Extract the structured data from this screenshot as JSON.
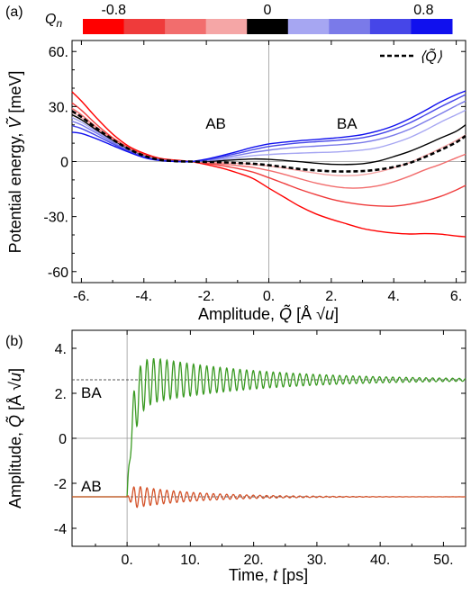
{
  "chart_data": [
    {
      "type": "line",
      "panel_label": "(a)",
      "xlabel": "Amplitude, Q̃ [Å √u]",
      "ylabel": "Potential energy, Ṽ [meV]",
      "xlim": [
        -6.3,
        6.3
      ],
      "ylim": [
        -66,
        66
      ],
      "xticks": [
        -6,
        -4,
        -2,
        0,
        2,
        4,
        6
      ],
      "xtick_labels": [
        "-6.",
        "-4.",
        "-2.",
        "0.",
        "2.",
        "4.",
        "6."
      ],
      "yticks": [
        -60,
        -30,
        0,
        30,
        60
      ],
      "ytick_labels": [
        "-60",
        "-30.",
        "0",
        "30.",
        "60."
      ],
      "region_labels": [
        {
          "text": "AB",
          "x": -1.7,
          "y": 18
        },
        {
          "text": "BA",
          "x": 2.5,
          "y": 18
        }
      ],
      "legend": {
        "label": "⟨Q̃⟩",
        "position": "top-right",
        "style": "dashed"
      },
      "colorbar": {
        "label": "Qn",
        "tick_labels": [
          "-0.8",
          "0",
          "0.8"
        ],
        "values": [
          -0.8,
          -0.6,
          -0.4,
          -0.2,
          0,
          0.2,
          0.4,
          0.6,
          0.8
        ],
        "colors": [
          "#ff0000",
          "#ef3b3b",
          "#f26d6d",
          "#f5a6a6",
          "#000000",
          "#a6a6f2",
          "#7a7ae9",
          "#4646e8",
          "#1010ee"
        ]
      },
      "x": [
        -6.3,
        -6,
        -5.5,
        -5,
        -4.5,
        -4,
        -3.5,
        -3,
        -2.5,
        -2,
        -1.5,
        -1,
        -0.5,
        0,
        0.5,
        1,
        1.5,
        2,
        2.5,
        3,
        3.5,
        4,
        4.5,
        5,
        5.5,
        6,
        6.3
      ],
      "series": [
        {
          "q": -0.8,
          "color": "#ff0000",
          "values": [
            38,
            33,
            23.5,
            15,
            8.5,
            4.5,
            1.8,
            0.8,
            0,
            -1.6,
            -3.6,
            -6.2,
            -9.3,
            -14.5,
            -19.5,
            -24.5,
            -28.5,
            -31.5,
            -34,
            -36.5,
            -38,
            -39,
            -39.5,
            -39.3,
            -39.6,
            -40.6,
            -41
          ]
        },
        {
          "q": -0.6,
          "color": "#ef3b3b",
          "values": [
            32,
            28,
            20,
            13,
            7.7,
            4,
            1.4,
            0.5,
            0,
            -1,
            -2.2,
            -3.8,
            -5.8,
            -8.8,
            -12,
            -15.2,
            -18,
            -20.5,
            -22.3,
            -23.5,
            -24.2,
            -24.3,
            -23.3,
            -21.5,
            -19,
            -15.5,
            -13
          ]
        },
        {
          "q": -0.4,
          "color": "#f26d6d",
          "values": [
            29,
            25.5,
            18.5,
            12.3,
            7.3,
            3.5,
            1.2,
            0.3,
            0,
            -0.6,
            -1.3,
            -2.2,
            -3.2,
            -4.9,
            -7,
            -9.4,
            -11.7,
            -13.4,
            -14.4,
            -14.3,
            -13.2,
            -11,
            -8,
            -4.5,
            -1.5,
            2,
            4
          ]
        },
        {
          "q": -0.2,
          "color": "#f5a6a6",
          "values": [
            27,
            24,
            17.8,
            12,
            7,
            3.3,
            1.1,
            0.2,
            0,
            -0.3,
            -0.6,
            -1,
            -1.6,
            -2.4,
            -3.6,
            -5,
            -6.3,
            -7.4,
            -7.7,
            -7.2,
            -5.7,
            -3.4,
            -0.6,
            3.2,
            7.2,
            11.5,
            14.5
          ]
        },
        {
          "q": 0,
          "color": "#000000",
          "values": [
            25.5,
            22.8,
            17,
            11.5,
            6.7,
            3,
            1,
            0.2,
            0,
            0.1,
            0.5,
            1,
            1.4,
            1.2,
            0.6,
            -0.1,
            -0.9,
            -1.5,
            -1.6,
            -1.2,
            0.2,
            2.7,
            5.5,
            9,
            12.8,
            16.5,
            20
          ]
        },
        {
          "q": 0.2,
          "color": "#a6a6f2",
          "values": [
            24,
            21.5,
            16.2,
            11,
            6.4,
            2.8,
            0.9,
            0.15,
            0,
            0.4,
            1.2,
            2.2,
            3.2,
            3.8,
            4.3,
            4.6,
            4.9,
            5.1,
            5.6,
            6.3,
            7.6,
            10,
            13,
            17,
            21.5,
            25.5,
            28
          ]
        },
        {
          "q": 0.4,
          "color": "#7a7ae9",
          "values": [
            22,
            20,
            15.3,
            10.5,
            6.1,
            2.6,
            0.8,
            0.1,
            0,
            0.7,
            2,
            3.4,
            5,
            6.2,
            7.2,
            7.9,
            8.4,
            8.9,
            9.5,
            10.4,
            12,
            14.4,
            17.6,
            21.7,
            26,
            30.5,
            33
          ]
        },
        {
          "q": 0.6,
          "color": "#4646e8",
          "values": [
            19.5,
            18,
            14,
            9.7,
            5.7,
            2.4,
            0.7,
            0.1,
            0,
            1,
            2.7,
            4.5,
            6.5,
            8.2,
            9.3,
            10.2,
            10.8,
            11.3,
            12,
            13,
            14.8,
            17.5,
            21,
            25.3,
            29.8,
            34,
            36.5
          ]
        },
        {
          "q": 0.8,
          "color": "#1010ee",
          "values": [
            16,
            15.3,
            12.3,
            8.7,
            5.2,
            2.2,
            0.6,
            0.05,
            0,
            1.3,
            3.3,
            5.5,
            7.8,
            9.6,
            10.6,
            11.4,
            12,
            12.7,
            13.5,
            14.7,
            16.7,
            19.5,
            23.3,
            27.8,
            32.5,
            36.5,
            38.5
          ]
        },
        {
          "name": "⟨Q̃⟩",
          "style": "dashed",
          "color": "#000000",
          "values": [
            27.5,
            24.3,
            18,
            12,
            7,
            3.2,
            1,
            0.2,
            0,
            -0.2,
            -0.4,
            -0.8,
            -1.2,
            -2,
            -3,
            -4.1,
            -4.8,
            -5.3,
            -5.4,
            -5.2,
            -4.4,
            -3,
            -0.8,
            2.5,
            6.3,
            10.5,
            14
          ]
        }
      ]
    },
    {
      "type": "line",
      "panel_label": "(b)",
      "xlabel": "Time, t [ps]",
      "ylabel": "Amplitude, Q̃ [Å √u]",
      "xlim": [
        -8.7,
        53.5
      ],
      "ylim": [
        -4.8,
        4.8
      ],
      "xticks": [
        0,
        10,
        20,
        30,
        40,
        50
      ],
      "xtick_labels": [
        "0.",
        "10.",
        "20.",
        "30.",
        "40.",
        "50."
      ],
      "yticks": [
        -4,
        -2,
        0,
        2,
        4
      ],
      "ytick_labels": [
        "-4",
        "-2",
        "0",
        "2.",
        "4."
      ],
      "reference_lines": [
        {
          "label": "BA",
          "y": 2.6
        },
        {
          "label": "AB",
          "y": -2.6
        }
      ],
      "series": [
        {
          "color": "#3a9a22",
          "description_params": {
            "start": -2.6,
            "equilibrium": 2.6,
            "period_ps": 1.05,
            "amp_initial": 1.25,
            "decay_ps": 18,
            "onset_ps": 0
          }
        },
        {
          "color": "#d4532a",
          "description_params": {
            "start": -2.6,
            "equilibrium": -2.6,
            "period_ps": 1.05,
            "amp_initial": 0.55,
            "decay_ps": 10,
            "onset_ps": 0
          }
        }
      ]
    }
  ]
}
